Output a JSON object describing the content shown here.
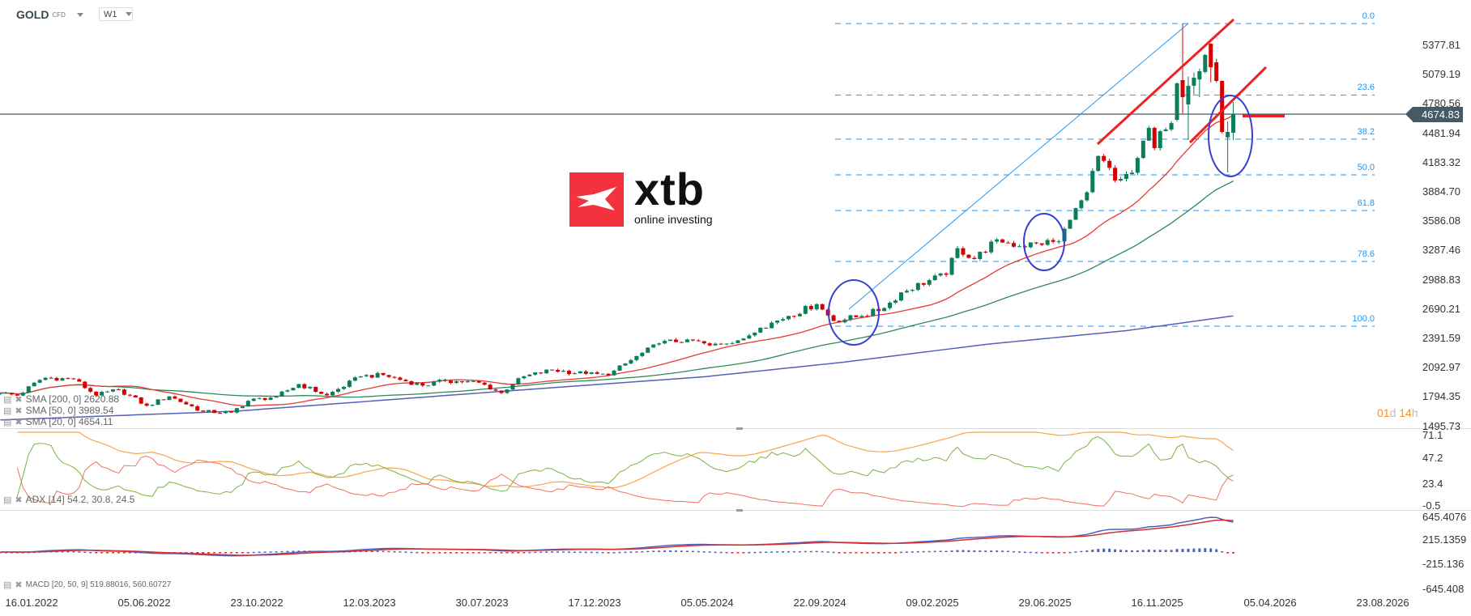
{
  "header": {
    "symbol": "GOLD",
    "instrument_type": "CFD",
    "timeframe": "W1"
  },
  "watermark": {
    "brand": "xtb",
    "tagline": "online investing"
  },
  "current_price": "4674.83",
  "candle_timer": {
    "days": "01",
    "days_unit": "d",
    "hours": "14",
    "hours_unit": "h"
  },
  "legends": {
    "sma200": "SMA [200, 0] 2620.88",
    "sma50": "SMA [50, 0] 3989.54",
    "sma20": "SMA [20, 0] 4654.11",
    "adx": "ADX [14] 54.2, 30.8, 24.5",
    "macd": "MACD [20, 50, 9] 519.88016, 560.60727"
  },
  "colors": {
    "up": "#0a7d5a",
    "down": "#d50000",
    "sma20": "#e53935",
    "sma50": "#2e8b57",
    "sma200": "#5560b8",
    "adx": "#f9a54a",
    "plus_di": "#7cb342",
    "minus_di": "#f07060",
    "macd": "#5060c0",
    "signal": "#d32f2f",
    "fib": "#2196f3",
    "price_line": "#455a64",
    "accent": "#f7931e"
  },
  "chart_data": {
    "type": "candlestick",
    "instrument": "GOLD",
    "interval": "weekly",
    "price_axis": {
      "ticks": [
        "5377.81",
        "5079.19",
        "4780.56",
        "4481.94",
        "4183.32",
        "3884.70",
        "3586.08",
        "3287.46",
        "2988.83",
        "2690.21",
        "2391.59",
        "2092.97",
        "1794.35",
        "1495.73"
      ]
    },
    "time_axis": {
      "ticks": [
        "16.01.2022",
        "05.06.2022",
        "23.10.2022",
        "12.03.2023",
        "30.07.2023",
        "17.12.2023",
        "05.05.2024",
        "22.09.2024",
        "09.02.2025",
        "29.06.2025",
        "16.11.2025",
        "05.04.2026",
        "23.08.2026"
      ]
    },
    "close_path": [
      [
        "2022-01-16",
        1835
      ],
      [
        "2022-02-06",
        1808
      ],
      [
        "2022-03-06",
        1968
      ],
      [
        "2022-03-13",
        1990
      ],
      [
        "2022-04-17",
        1975
      ],
      [
        "2022-05-15",
        1810
      ],
      [
        "2022-06-12",
        1870
      ],
      [
        "2022-07-17",
        1705
      ],
      [
        "2022-08-14",
        1800
      ],
      [
        "2022-09-25",
        1645
      ],
      [
        "2022-10-30",
        1635
      ],
      [
        "2022-11-20",
        1755
      ],
      [
        "2022-12-25",
        1800
      ],
      [
        "2023-01-22",
        1925
      ],
      [
        "2023-02-26",
        1810
      ],
      [
        "2023-04-09",
        2005
      ],
      [
        "2023-05-07",
        2018
      ],
      [
        "2023-06-25",
        1910
      ],
      [
        "2023-07-23",
        1960
      ],
      [
        "2023-09-03",
        1940
      ],
      [
        "2023-10-01",
        1835
      ],
      [
        "2023-10-22",
        1985
      ],
      [
        "2023-12-03",
        2070
      ],
      [
        "2024-01-14",
        2030
      ],
      [
        "2024-02-11",
        2015
      ],
      [
        "2024-03-10",
        2170
      ],
      [
        "2024-04-14",
        2340
      ],
      [
        "2024-05-19",
        2380
      ],
      [
        "2024-06-16",
        2320
      ],
      [
        "2024-07-28",
        2390
      ],
      [
        "2024-08-18",
        2500
      ],
      [
        "2024-09-22",
        2620
      ],
      [
        "2024-10-27",
        2740
      ],
      [
        "2024-11-17",
        2570
      ],
      [
        "2024-12-22",
        2620
      ],
      [
        "2025-01-19",
        2700
      ],
      [
        "2025-02-09",
        2860
      ],
      [
        "2025-03-16",
        2985
      ],
      [
        "2025-04-06",
        3040
      ],
      [
        "2025-04-20",
        3310
      ],
      [
        "2025-05-11",
        3200
      ],
      [
        "2025-06-08",
        3400
      ],
      [
        "2025-07-06",
        3330
      ],
      [
        "2025-07-27",
        3360
      ],
      [
        "2025-08-24",
        3380
      ],
      [
        "2025-09-07",
        3600
      ],
      [
        "2025-09-28",
        3880
      ],
      [
        "2025-10-12",
        4250
      ],
      [
        "2025-10-19",
        4200
      ],
      [
        "2025-11-02",
        4000
      ],
      [
        "2025-11-23",
        4080
      ],
      [
        "2025-11-30",
        4230
      ],
      [
        "2025-12-14",
        4537
      ],
      [
        "2025-12-21",
        4330
      ],
      [
        "2025-12-28",
        4503
      ],
      [
        "2026-01-04",
        4520
      ],
      [
        "2026-01-11",
        4585
      ]
    ],
    "recent_candles": [
      {
        "date": "2026-01-18",
        "o": 4619,
        "h": 5000,
        "l": 4600,
        "c": 4990
      },
      {
        "date": "2026-01-25",
        "o": 5023,
        "h": 5600,
        "l": 4685,
        "c": 4850
      },
      {
        "date": "2026-02-01",
        "o": 4775,
        "h": 5060,
        "l": 4413,
        "c": 4965
      },
      {
        "date": "2026-02-08",
        "o": 4966,
        "h": 5100,
        "l": 4880,
        "c": 5048
      },
      {
        "date": "2026-02-15",
        "o": 5030,
        "h": 5140,
        "l": 4850,
        "c": 5114
      },
      {
        "date": "2026-02-22",
        "o": 5107,
        "h": 5290,
        "l": 5090,
        "c": 5280
      },
      {
        "date": "2026-03-01",
        "o": 5394,
        "h": 5400,
        "l": 5000,
        "c": 5155
      },
      {
        "date": "2026-03-08",
        "o": 5205,
        "h": 5240,
        "l": 5000,
        "c": 5015
      },
      {
        "date": "2026-03-15",
        "o": 5015,
        "h": 5020,
        "l": 4480,
        "c": 4495
      },
      {
        "date": "2026-03-22",
        "o": 4440,
        "h": 4602,
        "l": 4083,
        "c": 4495
      },
      {
        "date": "2026-03-29",
        "o": 4487,
        "h": 4800,
        "l": 4413,
        "c": 4674.83
      }
    ],
    "sma200_path": [
      [
        "2022-01-16",
        1560
      ],
      [
        "2022-11-06",
        1650
      ],
      [
        "2023-08-27",
        1830
      ],
      [
        "2024-06-09",
        2000
      ],
      [
        "2024-12-01",
        2150
      ],
      [
        "2025-05-25",
        2330
      ],
      [
        "2025-11-16",
        2470
      ],
      [
        "2026-03-29",
        2620.88
      ]
    ],
    "fibonacci": {
      "high": 5600,
      "low": 2515,
      "levels": [
        "0.0",
        "23.6",
        "38.2",
        "50.0",
        "61.8",
        "78.6",
        "100.0"
      ]
    },
    "adx_panel": {
      "ticks": [
        "71.1",
        "47.2",
        "23.4",
        "-0.5"
      ],
      "period": 14
    },
    "macd_panel": {
      "ticks": [
        "645.4076",
        "215.1359",
        "-215.136",
        "-645.408"
      ],
      "fast": 20,
      "slow": 50,
      "signal": 9
    }
  }
}
